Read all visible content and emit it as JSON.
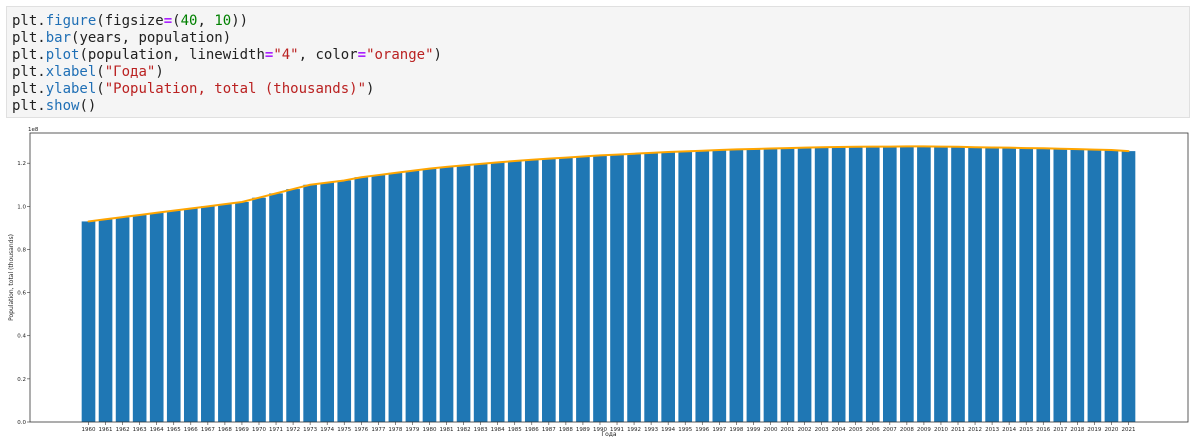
{
  "code_cell": {
    "lines": [
      [
        {
          "t": "plt."
        },
        {
          "t": "figure",
          "c": "fn"
        },
        {
          "t": "(figsize"
        },
        {
          "t": "=",
          "c": "eq"
        },
        {
          "t": "("
        },
        {
          "t": "40",
          "c": "num"
        },
        {
          "t": ", "
        },
        {
          "t": "10",
          "c": "num"
        },
        {
          "t": "))"
        }
      ],
      [
        {
          "t": "plt."
        },
        {
          "t": "bar",
          "c": "fn"
        },
        {
          "t": "(years, population)"
        }
      ],
      [
        {
          "t": "plt."
        },
        {
          "t": "plot",
          "c": "fn"
        },
        {
          "t": "(population, linewidth"
        },
        {
          "t": "=",
          "c": "eq"
        },
        {
          "t": "\"4\"",
          "c": "str"
        },
        {
          "t": ", color"
        },
        {
          "t": "=",
          "c": "eq"
        },
        {
          "t": "\"orange\"",
          "c": "str"
        },
        {
          "t": ")"
        }
      ],
      [
        {
          "t": "plt."
        },
        {
          "t": "xlabel",
          "c": "fn"
        },
        {
          "t": "("
        },
        {
          "t": "\"Года\"",
          "c": "str"
        },
        {
          "t": ")"
        }
      ],
      [
        {
          "t": "plt."
        },
        {
          "t": "ylabel",
          "c": "fn"
        },
        {
          "t": "("
        },
        {
          "t": "\"Population, total (thousands)\"",
          "c": "str"
        },
        {
          "t": ")"
        }
      ],
      [
        {
          "t": "plt."
        },
        {
          "t": "show",
          "c": "fn"
        },
        {
          "t": "()"
        }
      ]
    ]
  },
  "colors": {
    "fn": "#1f6fb5",
    "eq": "#aa22ff",
    "num": "#008000",
    "str": "#ba2121",
    "bar": "#1f77b4",
    "line": "orange"
  },
  "chart_data": {
    "type": "bar",
    "xlabel": "Года",
    "ylabel": "Population, total (thousands)",
    "y_offset_text": "1e8",
    "ylim": [
      0,
      1.34
    ],
    "y_ticks": [
      0.0,
      0.2,
      0.4,
      0.6,
      0.8,
      1.0,
      1.2
    ],
    "y_tick_labels": [
      "0.0",
      "0.2",
      "0.4",
      "0.6",
      "0.8",
      "1.0",
      "1.2"
    ],
    "grid": false,
    "categories": [
      "1960",
      "1961",
      "1962",
      "1963",
      "1964",
      "1965",
      "1966",
      "1967",
      "1968",
      "1969",
      "1970",
      "1971",
      "1972",
      "1973",
      "1974",
      "1975",
      "1976",
      "1977",
      "1978",
      "1979",
      "1980",
      "1981",
      "1982",
      "1983",
      "1984",
      "1985",
      "1986",
      "1987",
      "1988",
      "1989",
      "1990",
      "1991",
      "1992",
      "1993",
      "1994",
      "1995",
      "1996",
      "1997",
      "1998",
      "1999",
      "2000",
      "2001",
      "2002",
      "2003",
      "2004",
      "2005",
      "2006",
      "2007",
      "2008",
      "2009",
      "2010",
      "2011",
      "2012",
      "2013",
      "2014",
      "2015",
      "2016",
      "2017",
      "2018",
      "2019",
      "2020",
      "2021"
    ],
    "series": [
      {
        "type": "bar",
        "values": [
          0.93,
          0.94,
          0.95,
          0.96,
          0.97,
          0.98,
          0.99,
          1.0,
          1.01,
          1.02,
          1.04,
          1.06,
          1.08,
          1.1,
          1.11,
          1.12,
          1.135,
          1.145,
          1.155,
          1.165,
          1.175,
          1.183,
          1.19,
          1.197,
          1.204,
          1.21,
          1.216,
          1.221,
          1.226,
          1.231,
          1.236,
          1.24,
          1.244,
          1.248,
          1.252,
          1.255,
          1.258,
          1.261,
          1.264,
          1.266,
          1.268,
          1.27,
          1.272,
          1.274,
          1.275,
          1.276,
          1.277,
          1.277,
          1.278,
          1.278,
          1.277,
          1.276,
          1.274,
          1.273,
          1.272,
          1.27,
          1.269,
          1.267,
          1.265,
          1.263,
          1.261,
          1.256
        ]
      },
      {
        "type": "line",
        "values": [
          0.93,
          0.94,
          0.95,
          0.96,
          0.97,
          0.98,
          0.99,
          1.0,
          1.01,
          1.02,
          1.04,
          1.06,
          1.08,
          1.1,
          1.11,
          1.12,
          1.135,
          1.145,
          1.155,
          1.165,
          1.175,
          1.183,
          1.19,
          1.197,
          1.204,
          1.21,
          1.216,
          1.221,
          1.226,
          1.231,
          1.236,
          1.24,
          1.244,
          1.248,
          1.252,
          1.255,
          1.258,
          1.261,
          1.264,
          1.266,
          1.268,
          1.27,
          1.272,
          1.274,
          1.275,
          1.276,
          1.277,
          1.277,
          1.278,
          1.278,
          1.277,
          1.276,
          1.274,
          1.273,
          1.272,
          1.27,
          1.269,
          1.267,
          1.265,
          1.263,
          1.261,
          1.256
        ]
      }
    ]
  }
}
